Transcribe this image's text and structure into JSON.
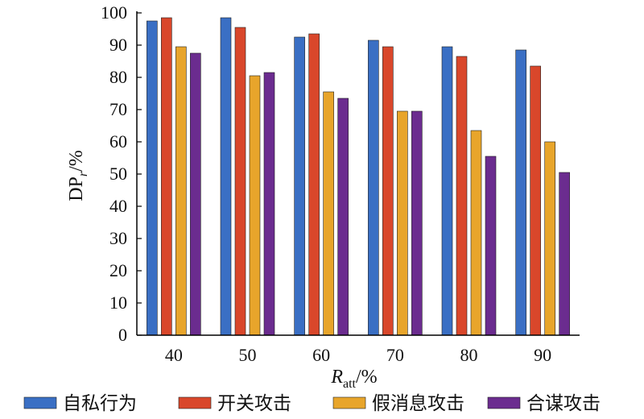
{
  "chart_data": {
    "type": "bar",
    "categories": [
      "40",
      "50",
      "60",
      "70",
      "80",
      "90"
    ],
    "series": [
      {
        "name": "自私行为",
        "color": "#3A6FC4",
        "values": [
          97.5,
          98.5,
          92.5,
          91.5,
          89.5,
          88.5
        ]
      },
      {
        "name": "开关攻击",
        "color": "#D9472B",
        "values": [
          98.5,
          95.5,
          93.5,
          89.5,
          86.5,
          83.5
        ]
      },
      {
        "name": "假消息攻击",
        "color": "#E8A52B",
        "values": [
          89.5,
          80.5,
          75.5,
          69.5,
          63.5,
          60.0
        ]
      },
      {
        "name": "合谋攻击",
        "color": "#6B2C8F",
        "values": [
          87.5,
          81.5,
          73.5,
          69.5,
          55.5,
          50.5
        ]
      }
    ],
    "y_ticks": [
      "0",
      "10",
      "20",
      "30",
      "40",
      "50",
      "60",
      "70",
      "80",
      "90",
      "100"
    ],
    "ylim": [
      0,
      100
    ],
    "ylabel": {
      "main": "DP",
      "sub": "r",
      "unit": "/%"
    },
    "xlabel": {
      "main": "R",
      "sub": "att",
      "unit": "/%"
    },
    "legend_position": "bottom",
    "grid": false
  }
}
